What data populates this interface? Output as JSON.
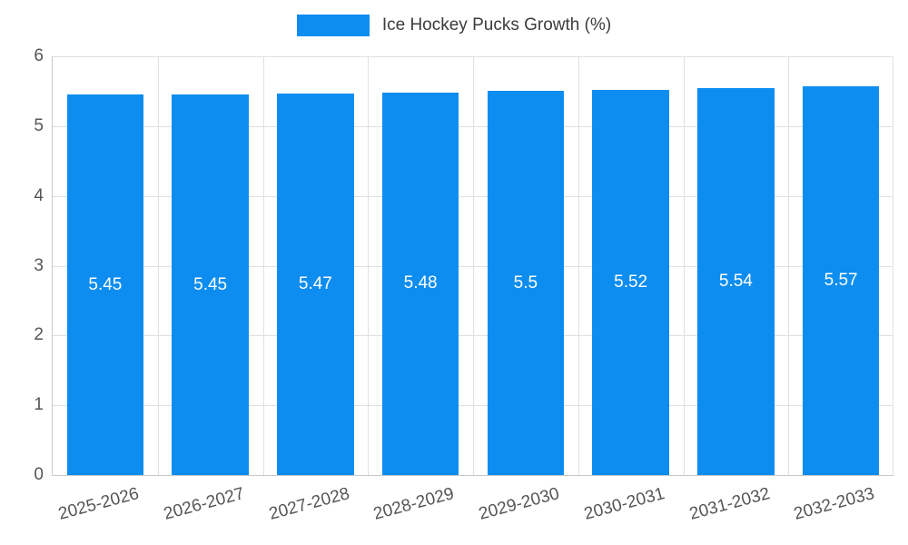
{
  "chart_data": {
    "type": "bar",
    "title": "Ice Hockey Pucks Growth (%)",
    "categories": [
      "2025-2026",
      "2026-2027",
      "2027-2028",
      "2028-2029",
      "2029-2030",
      "2030-2031",
      "2031-2032",
      "2032-2033"
    ],
    "values": [
      5.45,
      5.45,
      5.47,
      5.48,
      5.5,
      5.52,
      5.54,
      5.57
    ],
    "value_labels": [
      "5.45",
      "5.45",
      "5.47",
      "5.48",
      "5.5",
      "5.52",
      "5.54",
      "5.57"
    ],
    "xlabel": "",
    "ylabel": "",
    "ylim": [
      0,
      6
    ],
    "ytick_step": 1,
    "ytick_labels": [
      "0",
      "1",
      "2",
      "3",
      "4",
      "5",
      "6"
    ],
    "grid": "on",
    "legend_position": "top",
    "colors": {
      "bar": "#0d8df0",
      "bar_value_text": "#ffffff",
      "axis_text": "#555555",
      "gridline": "#e0e0e0",
      "title_text": "#3c3c3c"
    }
  }
}
